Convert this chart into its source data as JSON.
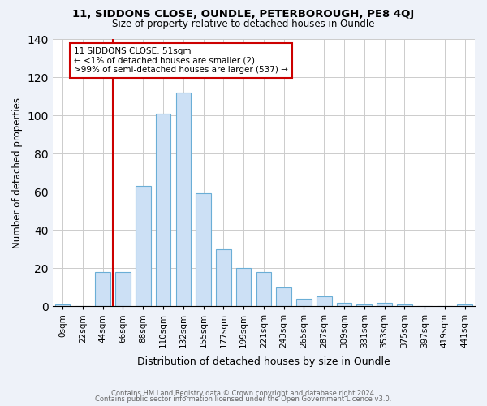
{
  "title1": "11, SIDDONS CLOSE, OUNDLE, PETERBOROUGH, PE8 4QJ",
  "title2": "Size of property relative to detached houses in Oundle",
  "xlabel": "Distribution of detached houses by size in Oundle",
  "ylabel": "Number of detached properties",
  "bin_labels": [
    "0sqm",
    "22sqm",
    "44sqm",
    "66sqm",
    "88sqm",
    "110sqm",
    "132sqm",
    "155sqm",
    "177sqm",
    "199sqm",
    "221sqm",
    "243sqm",
    "265sqm",
    "287sqm",
    "309sqm",
    "331sqm",
    "353sqm",
    "375sqm",
    "397sqm",
    "419sqm",
    "441sqm"
  ],
  "bar_heights": [
    1,
    0,
    18,
    18,
    63,
    101,
    112,
    59,
    30,
    20,
    18,
    10,
    4,
    5,
    2,
    1,
    2,
    1,
    0,
    0,
    1
  ],
  "bar_color": "#cce0f5",
  "bar_edge_color": "#6aaed6",
  "red_line_x": 2.5,
  "red_line_color": "#cc0000",
  "annotation_line1": "11 SIDDONS CLOSE: 51sqm",
  "annotation_line2": "← <1% of detached houses are smaller (2)",
  "annotation_line3": ">99% of semi-detached houses are larger (537) →",
  "annotation_box_edge": "#cc0000",
  "ylim": [
    0,
    140
  ],
  "yticks": [
    0,
    20,
    40,
    60,
    80,
    100,
    120,
    140
  ],
  "footer1": "Contains HM Land Registry data © Crown copyright and database right 2024.",
  "footer2": "Contains public sector information licensed under the Open Government Licence v3.0.",
  "background_color": "#eef2f9",
  "plot_background": "#ffffff",
  "bar_width": 0.75
}
